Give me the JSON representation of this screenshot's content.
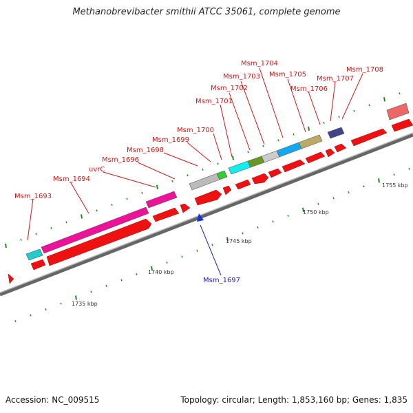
{
  "title": "Methanobrevibacter smithii ATCC 35061, complete genome",
  "accession": "Accession: NC_009515",
  "summary": "Topology: circular; Length: 1,853,160 bp; Genes: 1,835",
  "colors": {
    "forward_gene": "#ee1111",
    "reverse_label": "#1a1acc",
    "backbone": "#777777",
    "tick": "#228822"
  },
  "scale_labels": [
    "1735 kbp",
    "1740 kbp",
    "1745 kbp",
    "1750 kbp",
    "1755 kbp"
  ],
  "gene_labels": [
    {
      "name": "Msm_1693",
      "strand": "forward"
    },
    {
      "name": "Msm_1694",
      "strand": "forward"
    },
    {
      "name": "uvrC",
      "strand": "forward"
    },
    {
      "name": "Msm_1696",
      "strand": "forward"
    },
    {
      "name": "Msm_1698",
      "strand": "forward"
    },
    {
      "name": "Msm_1699",
      "strand": "forward"
    },
    {
      "name": "Msm_1700",
      "strand": "forward"
    },
    {
      "name": "Msm_1701",
      "strand": "forward"
    },
    {
      "name": "Msm_1702",
      "strand": "forward"
    },
    {
      "name": "Msm_1703",
      "strand": "forward"
    },
    {
      "name": "Msm_1704",
      "strand": "forward"
    },
    {
      "name": "Msm_1705",
      "strand": "forward"
    },
    {
      "name": "Msm_1706",
      "strand": "forward"
    },
    {
      "name": "Msm_1707",
      "strand": "forward"
    },
    {
      "name": "Msm_1708",
      "strand": "forward"
    },
    {
      "name": "Msm_1697",
      "strand": "reverse"
    }
  ]
}
